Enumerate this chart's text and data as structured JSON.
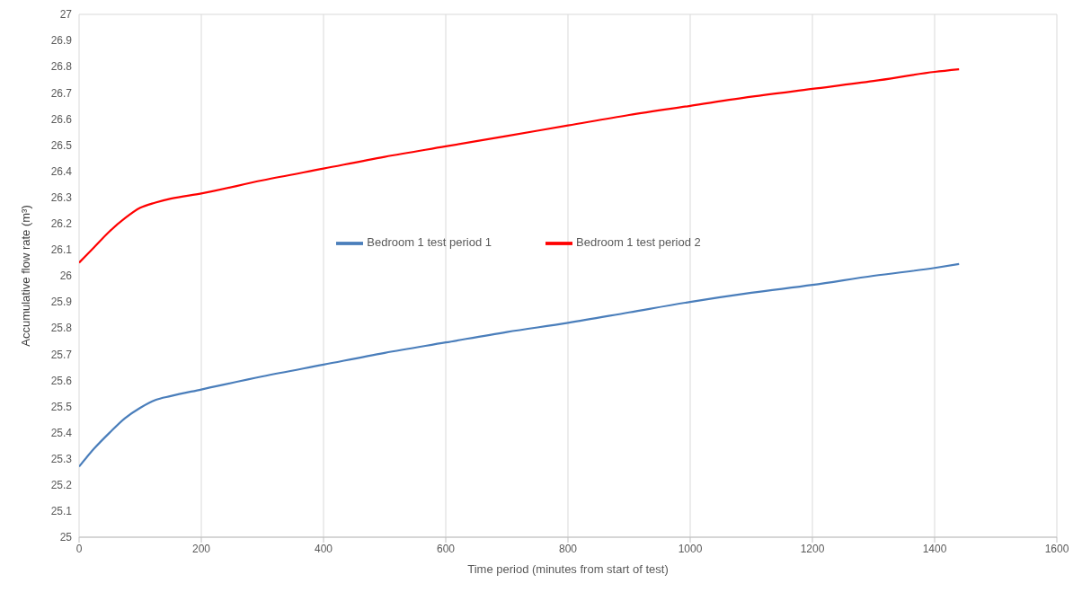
{
  "chart_data": {
    "type": "line",
    "xlabel": "Time period (minutes from start of test)",
    "ylabel": "Accumulative flow rate (m³)",
    "x": [
      0,
      25,
      50,
      75,
      100,
      125,
      150,
      200,
      300,
      400,
      500,
      600,
      700,
      800,
      900,
      1000,
      1100,
      1200,
      1300,
      1400,
      1440
    ],
    "series": [
      {
        "name": "Bedroom 1 test period 1",
        "color": "#4a7ebb",
        "values": [
          25.27,
          25.34,
          25.4,
          25.455,
          25.495,
          25.525,
          25.54,
          25.565,
          25.615,
          25.66,
          25.705,
          25.745,
          25.785,
          25.82,
          25.86,
          25.9,
          25.935,
          25.965,
          26.0,
          26.03,
          26.045
        ]
      },
      {
        "name": "Bedroom 1 test period 2",
        "color": "#ff0000",
        "values": [
          26.05,
          26.11,
          26.17,
          26.22,
          26.26,
          26.28,
          26.295,
          26.315,
          26.365,
          26.41,
          26.455,
          26.495,
          26.535,
          26.575,
          26.615,
          26.65,
          26.685,
          26.715,
          26.745,
          26.78,
          26.79
        ]
      }
    ],
    "xlim": [
      0,
      1600
    ],
    "xticks": [
      0,
      200,
      400,
      600,
      800,
      1000,
      1200,
      1400,
      1600
    ],
    "ylim": [
      25,
      27
    ],
    "yticks": [
      25,
      25.1,
      25.2,
      25.3,
      25.4,
      25.5,
      25.6,
      25.7,
      25.8,
      25.9,
      26,
      26.1,
      26.2,
      26.3,
      26.4,
      26.5,
      26.6,
      26.7,
      26.8,
      26.9,
      27
    ],
    "grid": true,
    "legend": "center",
    "marker": "none",
    "line_style": "solid"
  }
}
